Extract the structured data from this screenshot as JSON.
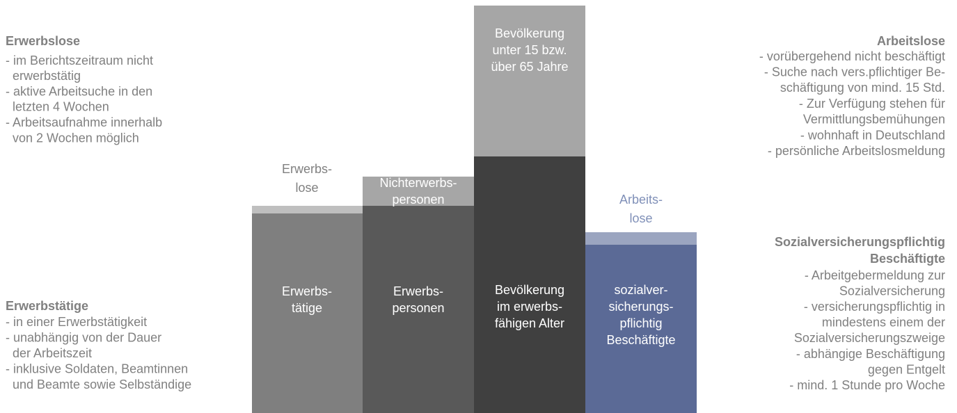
{
  "left_top": {
    "title": "Erwerbslose",
    "lines": [
      "- im Berichtszeitraum nicht",
      "erwerbstätig",
      "- aktive Arbeitsuche in den",
      "letzten 4 Wochen",
      "- Arbeitsaufnahme innerhalb",
      "von 2 Wochen möglich"
    ]
  },
  "left_bottom": {
    "title": "Erwerbstätige",
    "lines": [
      "- in einer Erwerbstätigkeit",
      "- unabhängig von der Dauer",
      "der Arbeitszeit",
      "- inklusive Soldaten, Beamtinnen",
      "und Beamte sowie Selbständige"
    ]
  },
  "right_top": {
    "title": "Arbeitslose",
    "lines": [
      "- vorübergehend nicht beschäftigt",
      "- Suche nach vers.pflichtiger Be-",
      "schäftigung von mind. 15 Std.",
      "- Zur Verfügung stehen für",
      "Vermittlungsbemühungen",
      "- wohnhaft in Deutschland",
      "- persönliche Arbeitslosmeldung"
    ]
  },
  "right_bottom": {
    "title": [
      "Sozialversicherungspflichtig",
      "Beschäftigte"
    ],
    "lines": [
      "- Arbeitgebermeldung zur",
      "Sozialversicherung",
      "- versicherungspflichtig in",
      "mindestens einem der",
      "Sozialversicherungszweige",
      "- abhängige Beschäftigung",
      "gegen Entgelt",
      "- mind. 1 Stunde pro Woche"
    ]
  },
  "columns": [
    {
      "top_label": [
        "Erwerbs-",
        "lose"
      ],
      "body": [
        "Erwerbs-",
        "tätige"
      ]
    },
    {
      "top_box": [
        "Nichterwerbs-",
        "personen"
      ],
      "body": [
        "Erwerbs-",
        "personen"
      ]
    },
    {
      "top_box": [
        "Bevölkerung",
        "unter 15 bzw.",
        "über 65 Jahre"
      ],
      "body": [
        "Bevölkerung",
        "im erwerbs-",
        "fähigen Alter"
      ]
    },
    {
      "top_label": [
        "Arbeits-",
        "lose"
      ],
      "body": [
        "sozialver-",
        "sicherungs-",
        "pflichtig",
        "Beschäftigte"
      ]
    }
  ]
}
